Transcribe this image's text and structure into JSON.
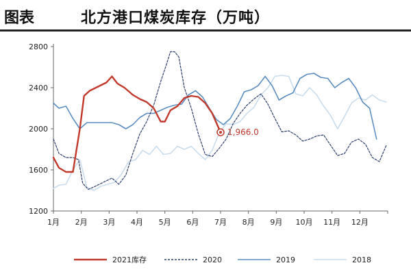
{
  "header": {
    "figure_label": "图表",
    "title": "北方港口煤炭库存（万吨）"
  },
  "chart_data": {
    "type": "line",
    "title": "北方港口煤炭库存（万吨）",
    "xlabel": "",
    "ylabel": "",
    "x_range": [
      1,
      13
    ],
    "ylim": [
      1200,
      2800
    ],
    "y_ticks": [
      1200,
      1600,
      2000,
      2400,
      2800
    ],
    "x_tick_labels": [
      "1月",
      "2月",
      "3月",
      "4月",
      "5月",
      "6月",
      "7月",
      "8月",
      "9月",
      "10月",
      "11月",
      "12月"
    ],
    "grid": false,
    "legend_position": "bottom",
    "annotation": {
      "text": "1,966.0",
      "x": 7.0,
      "y": 1966
    },
    "series": [
      {
        "name": "2021库存",
        "color": "#c0392b",
        "style": "solid",
        "width": 2.4,
        "x": [
          1.0,
          1.2,
          1.45,
          1.7,
          1.95,
          2.1,
          2.3,
          2.6,
          2.9,
          3.1,
          3.3,
          3.55,
          3.85,
          4.1,
          4.35,
          4.6,
          4.85,
          5.0,
          5.2,
          5.45,
          5.7,
          5.95,
          6.2,
          6.45,
          6.7,
          7.0
        ],
        "y": [
          1720,
          1620,
          1580,
          1580,
          2000,
          2320,
          2370,
          2410,
          2450,
          2510,
          2440,
          2400,
          2330,
          2290,
          2260,
          2200,
          2070,
          2070,
          2180,
          2220,
          2300,
          2320,
          2310,
          2250,
          2150,
          1966
        ]
      },
      {
        "name": "2020",
        "color": "#2c3e6b",
        "style": "dashed",
        "width": 1.2,
        "x": [
          1.0,
          1.2,
          1.45,
          1.7,
          1.9,
          2.05,
          2.25,
          2.5,
          2.8,
          3.1,
          3.35,
          3.6,
          3.85,
          4.1,
          4.35,
          4.6,
          4.85,
          5.05,
          5.2,
          5.35,
          5.5,
          5.7,
          5.95,
          6.2,
          6.45,
          6.7,
          6.95,
          7.2,
          7.45,
          7.7,
          7.95,
          8.2,
          8.45,
          8.7,
          8.95,
          9.2,
          9.45,
          9.7,
          9.95,
          10.2,
          10.45,
          10.7,
          10.95,
          11.2,
          11.45,
          11.7,
          11.95,
          12.2,
          12.45,
          12.7,
          12.95
        ],
        "y": [
          1900,
          1760,
          1720,
          1720,
          1700,
          1470,
          1410,
          1440,
          1480,
          1520,
          1460,
          1550,
          1760,
          1950,
          2070,
          2230,
          2460,
          2620,
          2750,
          2750,
          2700,
          2400,
          2200,
          1950,
          1750,
          1730,
          1810,
          1900,
          2050,
          2150,
          2230,
          2290,
          2340,
          2240,
          2100,
          1970,
          1980,
          1940,
          1880,
          1900,
          1930,
          1940,
          1840,
          1740,
          1760,
          1870,
          1900,
          1850,
          1720,
          1680,
          1840
        ]
      },
      {
        "name": "2019",
        "color": "#5b8dc0",
        "style": "solid",
        "width": 1.6,
        "x": [
          1.0,
          1.2,
          1.45,
          1.7,
          1.95,
          2.2,
          2.5,
          2.8,
          3.1,
          3.35,
          3.6,
          3.85,
          4.1,
          4.35,
          4.6,
          4.85,
          5.1,
          5.35,
          5.6,
          5.85,
          6.1,
          6.35,
          6.6,
          6.85,
          7.1,
          7.35,
          7.6,
          7.85,
          8.1,
          8.35,
          8.6,
          8.85,
          9.1,
          9.35,
          9.6,
          9.85,
          10.1,
          10.35,
          10.6,
          10.85,
          11.1,
          11.35,
          11.6,
          11.85,
          12.1,
          12.35,
          12.6
        ],
        "y": [
          2250,
          2200,
          2220,
          2100,
          2000,
          2060,
          2060,
          2060,
          2060,
          2040,
          2000,
          2040,
          2110,
          2150,
          2150,
          2180,
          2210,
          2230,
          2240,
          2330,
          2370,
          2310,
          2200,
          2090,
          2040,
          2100,
          2220,
          2360,
          2380,
          2420,
          2510,
          2420,
          2280,
          2320,
          2350,
          2490,
          2530,
          2540,
          2500,
          2490,
          2400,
          2450,
          2490,
          2400,
          2260,
          2200,
          1900
        ]
      },
      {
        "name": "2018",
        "color": "#c9dcec",
        "style": "solid",
        "width": 1.6,
        "x": [
          1.0,
          1.2,
          1.45,
          1.7,
          1.95,
          2.2,
          2.45,
          2.7,
          2.95,
          3.2,
          3.45,
          3.7,
          3.95,
          4.2,
          4.45,
          4.7,
          4.95,
          5.2,
          5.45,
          5.7,
          5.95,
          6.2,
          6.45,
          6.7,
          6.95,
          7.2,
          7.45,
          7.7,
          7.95,
          8.2,
          8.45,
          8.7,
          8.95,
          9.2,
          9.45,
          9.7,
          9.95,
          10.2,
          10.45,
          10.7,
          10.95,
          11.2,
          11.45,
          11.7,
          11.95,
          12.2,
          12.45,
          12.7,
          12.95
        ],
        "y": [
          1420,
          1450,
          1460,
          1600,
          1700,
          1430,
          1400,
          1440,
          1460,
          1480,
          1560,
          1680,
          1700,
          1790,
          1750,
          1830,
          1750,
          1760,
          1830,
          1800,
          1830,
          1760,
          1700,
          1790,
          1960,
          2050,
          2040,
          2070,
          2150,
          2210,
          2330,
          2400,
          2510,
          2520,
          2510,
          2340,
          2320,
          2400,
          2330,
          2220,
          2130,
          2000,
          2120,
          2250,
          2300,
          2280,
          2330,
          2280,
          2260
        ]
      }
    ]
  }
}
